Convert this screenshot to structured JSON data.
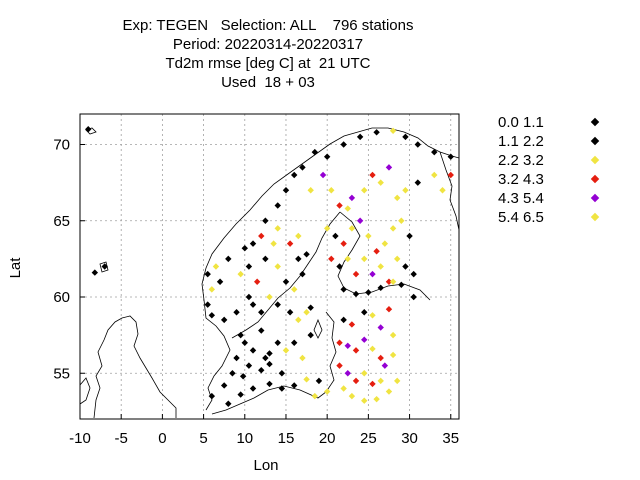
{
  "title": {
    "line1": "Exp: TEGEN   Selection: ALL    796 stations",
    "line2": "Period: 20220314-20220317",
    "line3": "Td2m rmse [deg C] at  21 UTC",
    "line4": "Used  18 + 03"
  },
  "axes": {
    "xlabel": "Lon",
    "ylabel": "Lat",
    "xlim": [
      -10,
      36
    ],
    "ylim": [
      52,
      72
    ],
    "xticks": [
      -10,
      -5,
      0,
      5,
      10,
      15,
      20,
      25,
      30,
      35
    ],
    "yticks": [
      55,
      60,
      65,
      70
    ],
    "grid": true
  },
  "legend": {
    "placement": "right",
    "entries": [
      {
        "label": "0.0 1.1",
        "color": "#000000"
      },
      {
        "label": "1.1 2.2",
        "color": "#000000"
      },
      {
        "label": "2.2 3.2",
        "color": "#f0e442"
      },
      {
        "label": "3.2 4.3",
        "color": "#e51e10"
      },
      {
        "label": "4.3 5.4",
        "color": "#9400d3"
      },
      {
        "label": "5.4 6.5",
        "color": "#f0e442"
      }
    ]
  },
  "chart_data": {
    "type": "scatter",
    "xlabel": "Lon",
    "ylabel": "Lat",
    "xlim": [
      -10,
      36
    ],
    "ylim": [
      52,
      72
    ],
    "legend_title": "",
    "classes": [
      "0.0 1.1",
      "1.1 2.2",
      "2.2 3.2",
      "3.2 4.3",
      "4.3 5.4",
      "5.4 6.5"
    ],
    "class_colors": [
      "#000000",
      "#000000",
      "#f0e442",
      "#e51e10",
      "#9400d3",
      "#f0e442"
    ],
    "points": [
      [
        -9.0,
        71.0,
        1
      ],
      [
        6.0,
        53.5,
        1
      ],
      [
        7.5,
        54.2,
        0
      ],
      [
        8.5,
        55.0,
        1
      ],
      [
        9.0,
        56.0,
        1
      ],
      [
        9.8,
        54.8,
        0
      ],
      [
        10.5,
        55.5,
        1
      ],
      [
        11.0,
        56.5,
        0
      ],
      [
        12.0,
        55.2,
        1
      ],
      [
        12.5,
        56.0,
        0
      ],
      [
        13.0,
        55.6,
        1
      ],
      [
        14.5,
        55.0,
        1
      ],
      [
        9.5,
        57.5,
        1
      ],
      [
        10.0,
        57.0,
        0
      ],
      [
        12.0,
        57.8,
        1
      ],
      [
        13.0,
        56.3,
        1
      ],
      [
        14.0,
        57.0,
        1
      ],
      [
        15.0,
        56.5,
        2
      ],
      [
        16.0,
        57.0,
        1
      ],
      [
        17.0,
        56.0,
        2
      ],
      [
        18.0,
        57.5,
        1
      ],
      [
        16.5,
        58.5,
        2
      ],
      [
        15.5,
        59.0,
        1
      ],
      [
        17.5,
        59.0,
        2
      ],
      [
        18.0,
        59.3,
        1
      ],
      [
        14.0,
        59.5,
        1
      ],
      [
        13.0,
        60.0,
        2
      ],
      [
        12.0,
        59.0,
        1
      ],
      [
        11.0,
        59.5,
        0
      ],
      [
        10.5,
        60.0,
        1
      ],
      [
        9.0,
        59.0,
        1
      ],
      [
        7.5,
        58.5,
        1
      ],
      [
        6.0,
        58.8,
        0
      ],
      [
        5.5,
        59.5,
        1
      ],
      [
        6.0,
        60.5,
        2
      ],
      [
        7.0,
        61.0,
        1
      ],
      [
        5.5,
        61.5,
        0
      ],
      [
        6.5,
        62.0,
        2
      ],
      [
        8.0,
        62.5,
        1
      ],
      [
        9.5,
        61.5,
        2
      ],
      [
        10.5,
        62.0,
        1
      ],
      [
        11.5,
        61.0,
        3
      ],
      [
        12.5,
        62.5,
        1
      ],
      [
        14.0,
        62.0,
        2
      ],
      [
        15.0,
        61.0,
        1
      ],
      [
        16.0,
        60.5,
        2
      ],
      [
        17.0,
        61.5,
        1
      ],
      [
        16.5,
        62.5,
        0
      ],
      [
        17.5,
        62.8,
        1
      ],
      [
        13.5,
        63.5,
        2
      ],
      [
        12.0,
        64.0,
        3
      ],
      [
        11.0,
        63.5,
        1
      ],
      [
        10.0,
        63.2,
        0
      ],
      [
        12.5,
        65.0,
        1
      ],
      [
        14.0,
        64.5,
        2
      ],
      [
        15.5,
        63.5,
        3
      ],
      [
        16.5,
        64.0,
        2
      ],
      [
        14.0,
        66.0,
        1
      ],
      [
        15.0,
        67.0,
        0
      ],
      [
        16.0,
        68.0,
        1
      ],
      [
        17.0,
        68.5,
        1
      ],
      [
        18.5,
        69.5,
        0
      ],
      [
        20.0,
        69.2,
        1
      ],
      [
        22.0,
        70.0,
        1
      ],
      [
        24.0,
        70.5,
        0
      ],
      [
        26.0,
        70.8,
        1
      ],
      [
        28.0,
        70.9,
        5
      ],
      [
        29.5,
        70.5,
        1
      ],
      [
        31.0,
        70.0,
        0
      ],
      [
        33.0,
        69.5,
        1
      ],
      [
        35.0,
        69.2,
        1
      ],
      [
        18.0,
        67.0,
        2
      ],
      [
        19.5,
        68.0,
        4
      ],
      [
        20.5,
        67.0,
        2
      ],
      [
        21.5,
        66.0,
        3
      ],
      [
        22.5,
        65.8,
        2
      ],
      [
        23.0,
        66.5,
        4
      ],
      [
        24.5,
        67.0,
        2
      ],
      [
        25.5,
        68.0,
        3
      ],
      [
        26.5,
        67.5,
        2
      ],
      [
        27.5,
        68.5,
        4
      ],
      [
        28.5,
        66.5,
        2
      ],
      [
        29.5,
        67.0,
        2
      ],
      [
        31.0,
        67.5,
        1
      ],
      [
        33.0,
        68.0,
        5
      ],
      [
        34.0,
        67.0,
        5
      ],
      [
        35.0,
        68.0,
        3
      ],
      [
        20.0,
        64.5,
        2
      ],
      [
        21.0,
        64.0,
        1
      ],
      [
        22.0,
        63.5,
        3
      ],
      [
        23.0,
        64.5,
        2
      ],
      [
        24.0,
        65.0,
        4
      ],
      [
        25.0,
        64.0,
        2
      ],
      [
        26.0,
        63.0,
        3
      ],
      [
        27.0,
        63.5,
        2
      ],
      [
        28.0,
        64.5,
        5
      ],
      [
        29.0,
        65.0,
        2
      ],
      [
        30.0,
        64.0,
        1
      ],
      [
        20.5,
        62.5,
        3
      ],
      [
        21.5,
        62.0,
        1
      ],
      [
        22.5,
        62.5,
        2
      ],
      [
        23.5,
        61.5,
        3
      ],
      [
        24.5,
        62.5,
        2
      ],
      [
        25.5,
        61.5,
        4
      ],
      [
        26.5,
        62.0,
        2
      ],
      [
        27.5,
        61.0,
        3
      ],
      [
        28.5,
        62.5,
        5
      ],
      [
        29.5,
        62.0,
        1
      ],
      [
        30.5,
        61.5,
        1
      ],
      [
        22.0,
        60.5,
        1
      ],
      [
        23.5,
        60.2,
        0
      ],
      [
        25.0,
        60.3,
        1
      ],
      [
        26.5,
        60.6,
        1
      ],
      [
        28.0,
        61.0,
        2
      ],
      [
        29.0,
        60.8,
        1
      ],
      [
        30.5,
        60.0,
        1
      ],
      [
        22.0,
        58.5,
        1
      ],
      [
        23.0,
        58.2,
        3
      ],
      [
        24.5,
        59.0,
        1
      ],
      [
        25.5,
        58.8,
        2
      ],
      [
        26.5,
        58.0,
        4
      ],
      [
        27.5,
        59.2,
        3
      ],
      [
        28.0,
        57.5,
        2
      ],
      [
        21.5,
        57.0,
        3
      ],
      [
        22.5,
        56.8,
        4
      ],
      [
        23.5,
        56.5,
        3
      ],
      [
        24.5,
        57.2,
        4
      ],
      [
        25.5,
        56.6,
        2
      ],
      [
        26.5,
        56.0,
        3
      ],
      [
        27.0,
        55.5,
        4
      ],
      [
        28.0,
        56.2,
        2
      ],
      [
        21.5,
        55.5,
        3
      ],
      [
        22.5,
        55.0,
        4
      ],
      [
        23.5,
        54.5,
        3
      ],
      [
        24.5,
        55.0,
        2
      ],
      [
        25.5,
        54.3,
        3
      ],
      [
        26.5,
        54.5,
        2
      ],
      [
        27.5,
        53.8,
        2
      ],
      [
        28.5,
        54.5,
        2
      ],
      [
        22.0,
        54.0,
        2
      ],
      [
        23.0,
        53.5,
        2
      ],
      [
        24.5,
        53.2,
        2
      ],
      [
        26.0,
        53.3,
        2
      ],
      [
        14.5,
        54.0,
        1
      ],
      [
        16.0,
        54.2,
        1
      ],
      [
        17.5,
        54.6,
        2
      ],
      [
        19.0,
        54.5,
        1
      ],
      [
        20.0,
        53.8,
        2
      ],
      [
        18.5,
        53.5,
        2
      ],
      [
        11.0,
        54.0,
        0
      ],
      [
        13.0,
        54.3,
        1
      ],
      [
        9.5,
        53.6,
        1
      ],
      [
        8.0,
        53.0,
        1
      ],
      [
        -8.2,
        61.6,
        1
      ],
      [
        -7.0,
        62.0,
        1
      ]
    ]
  }
}
